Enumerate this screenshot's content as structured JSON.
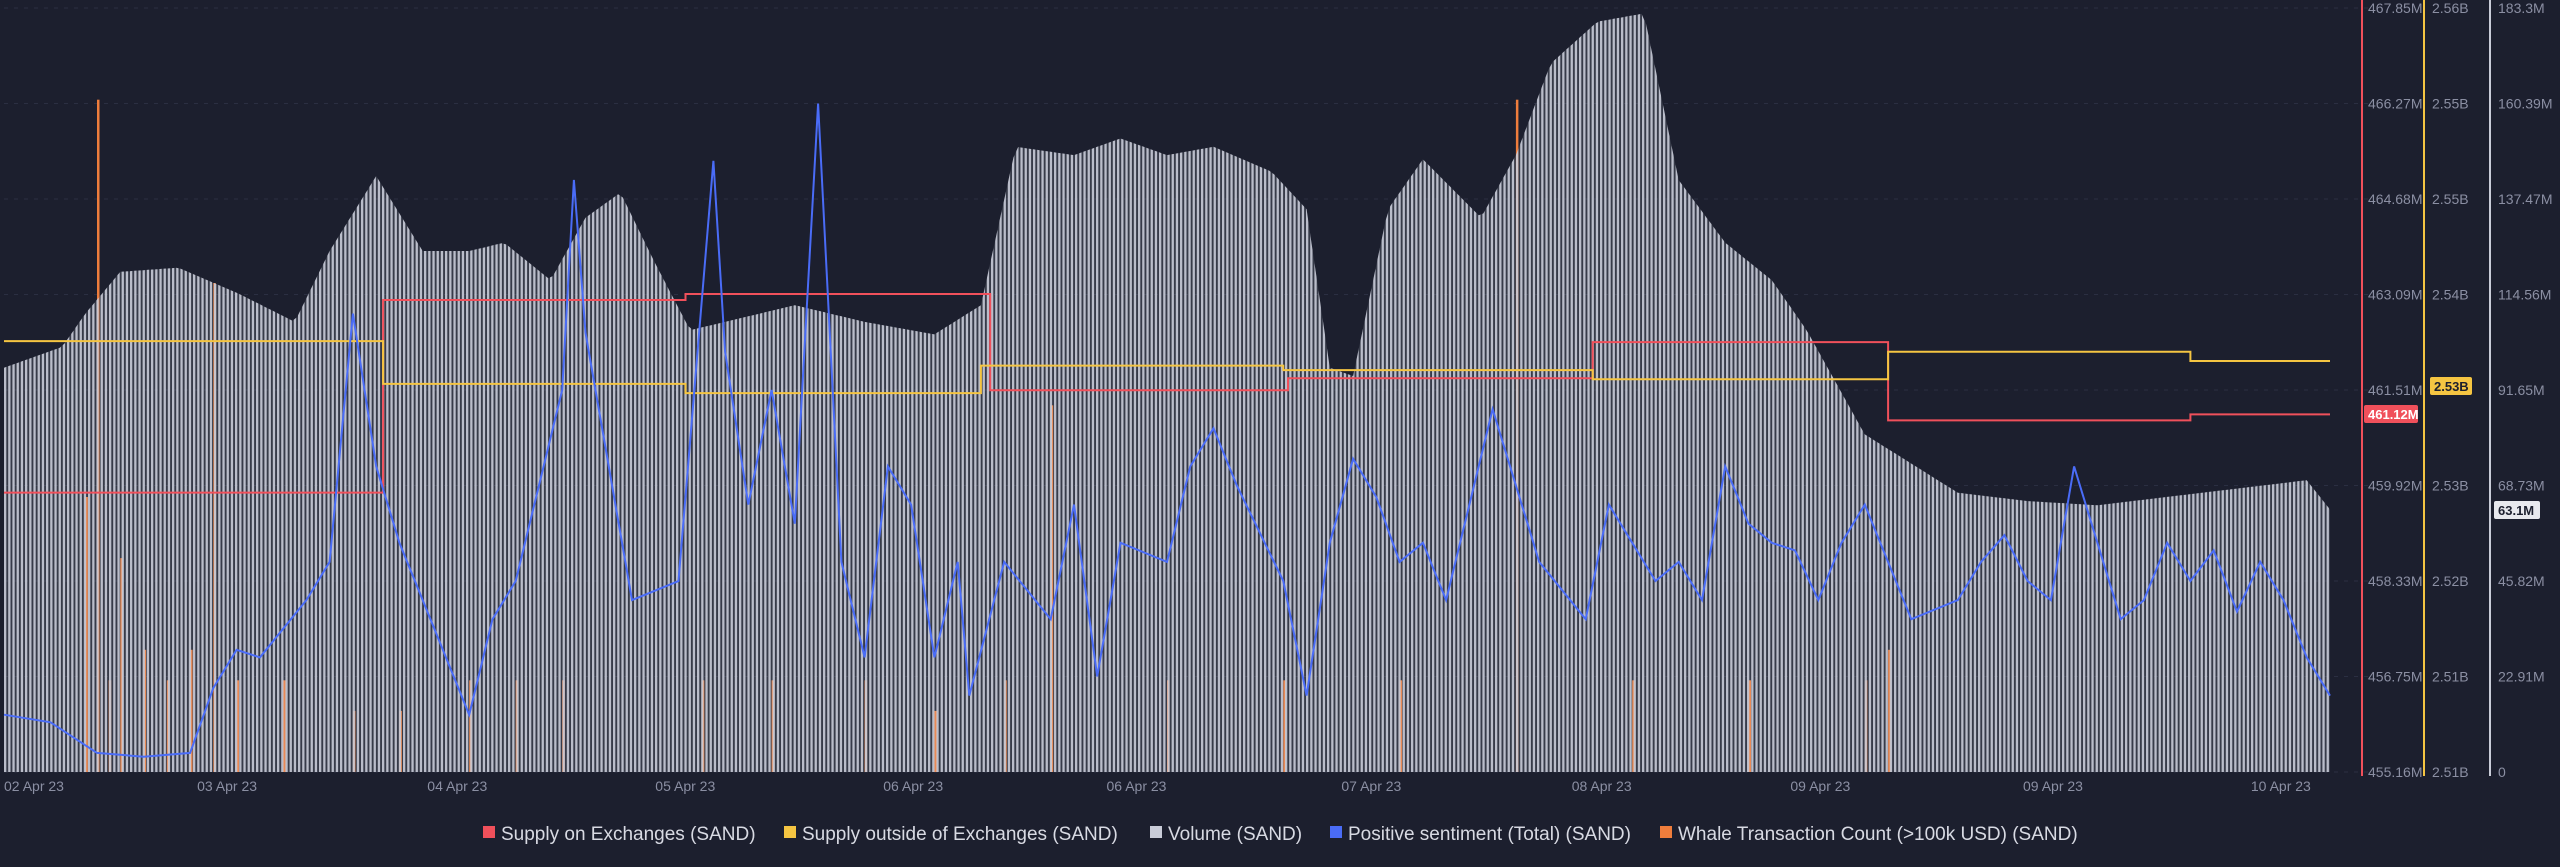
{
  "chart_data": {
    "type": "line",
    "title": "",
    "colors": {
      "background": "#1c1f2e",
      "grid": "#2b2f42",
      "axis_text": "#8b8fa3",
      "supply_on": "#f0505b",
      "supply_out": "#f5c542",
      "volume": "#c9ccd8",
      "sentiment": "#4a6cf7",
      "whale": "#ef7d3c"
    },
    "x_ticks": [
      "02 Apr 23",
      "03 Apr 23",
      "04 Apr 23",
      "05 Apr 23",
      "06 Apr 23",
      "06 Apr 23",
      "07 Apr 23",
      "08 Apr 23",
      "09 Apr 23",
      "09 Apr 23",
      "10 Apr 23"
    ],
    "axes": {
      "supply_on": {
        "ticks": [
          "467.85M",
          "466.27M",
          "464.68M",
          "463.09M",
          "461.51M",
          "459.92M",
          "458.33M",
          "456.75M",
          "455.16M"
        ],
        "range_m": [
          455.16,
          467.85
        ],
        "current_label": "461.12M"
      },
      "supply_out": {
        "ticks": [
          "2.56B",
          "2.55B",
          "2.55B",
          "2.54B",
          "2.53B",
          "2.53B",
          "2.52B",
          "2.51B",
          "2.51B"
        ],
        "range_b": [
          2.51,
          2.56
        ],
        "current_label": "2.53B"
      },
      "volume": {
        "ticks": [
          "183.3M",
          "160.39M",
          "137.47M",
          "114.56M",
          "91.65M",
          "68.73M",
          "45.82M",
          "22.91M",
          "0"
        ],
        "range_m": [
          0,
          183.3
        ],
        "current_label": "63.1M"
      }
    },
    "series": [
      {
        "name": "Supply on Exchanges (SAND)",
        "unit": "M SAND",
        "points": [
          [
            0,
            459.8
          ],
          [
            0.163,
            459.8
          ],
          [
            0.163,
            463.0
          ],
          [
            0.293,
            463.0
          ],
          [
            0.293,
            463.1
          ],
          [
            0.424,
            463.1
          ],
          [
            0.424,
            461.5
          ],
          [
            0.552,
            461.5
          ],
          [
            0.552,
            461.7
          ],
          [
            0.683,
            461.7
          ],
          [
            0.683,
            462.3
          ],
          [
            0.81,
            462.3
          ],
          [
            0.81,
            461.0
          ],
          [
            0.94,
            461.0
          ],
          [
            0.94,
            461.1
          ],
          [
            1.0,
            461.1
          ]
        ]
      },
      {
        "name": "Supply outside of Exchanges (SAND)",
        "unit": "B SAND",
        "points": [
          [
            0,
            2.5382
          ],
          [
            0.163,
            2.5382
          ],
          [
            0.163,
            2.5354
          ],
          [
            0.293,
            2.5354
          ],
          [
            0.293,
            2.5348
          ],
          [
            0.42,
            2.5348
          ],
          [
            0.42,
            2.5366
          ],
          [
            0.55,
            2.5366
          ],
          [
            0.55,
            2.5363
          ],
          [
            0.683,
            2.5363
          ],
          [
            0.683,
            2.5357
          ],
          [
            0.81,
            2.5357
          ],
          [
            0.81,
            2.5375
          ],
          [
            0.94,
            2.5375
          ],
          [
            0.94,
            2.5369
          ],
          [
            1.0,
            2.5369
          ]
        ]
      },
      {
        "name": "Volume (SAND)",
        "unit": "M SAND",
        "points": [
          [
            0,
            97
          ],
          [
            0.025,
            102
          ],
          [
            0.035,
            110
          ],
          [
            0.05,
            120
          ],
          [
            0.075,
            121
          ],
          [
            0.1,
            115
          ],
          [
            0.125,
            108
          ],
          [
            0.14,
            125
          ],
          [
            0.16,
            143
          ],
          [
            0.18,
            125
          ],
          [
            0.2,
            125
          ],
          [
            0.215,
            127
          ],
          [
            0.235,
            118
          ],
          [
            0.25,
            133
          ],
          [
            0.265,
            139
          ],
          [
            0.28,
            122
          ],
          [
            0.295,
            106
          ],
          [
            0.31,
            108
          ],
          [
            0.34,
            112
          ],
          [
            0.37,
            108
          ],
          [
            0.4,
            105
          ],
          [
            0.42,
            112
          ],
          [
            0.435,
            150
          ],
          [
            0.46,
            148
          ],
          [
            0.48,
            152
          ],
          [
            0.5,
            148
          ],
          [
            0.52,
            150
          ],
          [
            0.545,
            144
          ],
          [
            0.56,
            135
          ],
          [
            0.57,
            97
          ],
          [
            0.58,
            95
          ],
          [
            0.595,
            135
          ],
          [
            0.61,
            147
          ],
          [
            0.635,
            133
          ],
          [
            0.65,
            148
          ],
          [
            0.665,
            170
          ],
          [
            0.685,
            180
          ],
          [
            0.705,
            182
          ],
          [
            0.72,
            142
          ],
          [
            0.74,
            127
          ],
          [
            0.76,
            118
          ],
          [
            0.775,
            106
          ],
          [
            0.8,
            81
          ],
          [
            0.82,
            74
          ],
          [
            0.84,
            67
          ],
          [
            0.87,
            65
          ],
          [
            0.9,
            64
          ],
          [
            0.93,
            66
          ],
          [
            0.96,
            68
          ],
          [
            0.99,
            70
          ],
          [
            1.0,
            63
          ]
        ]
      },
      {
        "name": "Positive sentiment (Total)",
        "unit": "count",
        "points": [
          [
            0,
            15
          ],
          [
            0.02,
            13
          ],
          [
            0.04,
            5
          ],
          [
            0.06,
            4
          ],
          [
            0.08,
            5
          ],
          [
            0.09,
            22
          ],
          [
            0.1,
            32
          ],
          [
            0.11,
            30
          ],
          [
            0.13,
            45
          ],
          [
            0.14,
            55
          ],
          [
            0.15,
            120
          ],
          [
            0.16,
            80
          ],
          [
            0.17,
            60
          ],
          [
            0.18,
            45
          ],
          [
            0.2,
            15
          ],
          [
            0.21,
            40
          ],
          [
            0.22,
            50
          ],
          [
            0.24,
            100
          ],
          [
            0.245,
            155
          ],
          [
            0.25,
            115
          ],
          [
            0.27,
            45
          ],
          [
            0.29,
            50
          ],
          [
            0.305,
            160
          ],
          [
            0.31,
            110
          ],
          [
            0.32,
            70
          ],
          [
            0.33,
            100
          ],
          [
            0.34,
            65
          ],
          [
            0.35,
            175
          ],
          [
            0.36,
            55
          ],
          [
            0.37,
            30
          ],
          [
            0.38,
            80
          ],
          [
            0.39,
            70
          ],
          [
            0.4,
            30
          ],
          [
            0.41,
            55
          ],
          [
            0.415,
            20
          ],
          [
            0.43,
            55
          ],
          [
            0.45,
            40
          ],
          [
            0.46,
            70
          ],
          [
            0.47,
            25
          ],
          [
            0.48,
            60
          ],
          [
            0.5,
            55
          ],
          [
            0.51,
            80
          ],
          [
            0.52,
            90
          ],
          [
            0.53,
            75
          ],
          [
            0.55,
            50
          ],
          [
            0.56,
            20
          ],
          [
            0.57,
            60
          ],
          [
            0.58,
            82
          ],
          [
            0.59,
            72
          ],
          [
            0.6,
            55
          ],
          [
            0.61,
            60
          ],
          [
            0.62,
            45
          ],
          [
            0.63,
            70
          ],
          [
            0.64,
            95
          ],
          [
            0.66,
            55
          ],
          [
            0.68,
            40
          ],
          [
            0.69,
            70
          ],
          [
            0.7,
            60
          ],
          [
            0.71,
            50
          ],
          [
            0.72,
            55
          ],
          [
            0.73,
            45
          ],
          [
            0.74,
            80
          ],
          [
            0.75,
            65
          ],
          [
            0.76,
            60
          ],
          [
            0.77,
            58
          ],
          [
            0.78,
            45
          ],
          [
            0.79,
            60
          ],
          [
            0.8,
            70
          ],
          [
            0.82,
            40
          ],
          [
            0.84,
            45
          ],
          [
            0.85,
            55
          ],
          [
            0.86,
            62
          ],
          [
            0.87,
            50
          ],
          [
            0.88,
            45
          ],
          [
            0.89,
            80
          ],
          [
            0.9,
            60
          ],
          [
            0.91,
            40
          ],
          [
            0.92,
            45
          ],
          [
            0.93,
            60
          ],
          [
            0.94,
            50
          ],
          [
            0.95,
            58
          ],
          [
            0.96,
            42
          ],
          [
            0.97,
            55
          ],
          [
            0.98,
            45
          ],
          [
            0.99,
            30
          ],
          [
            1.0,
            20
          ]
        ]
      },
      {
        "name": "Whale Transaction Count (>100k USD) (SAND)",
        "unit": "count",
        "points": [
          [
            0.035,
            9
          ],
          [
            0.04,
            22
          ],
          [
            0.045,
            3
          ],
          [
            0.05,
            7
          ],
          [
            0.06,
            4
          ],
          [
            0.07,
            3
          ],
          [
            0.08,
            4
          ],
          [
            0.09,
            16
          ],
          [
            0.1,
            3
          ],
          [
            0.12,
            3
          ],
          [
            0.15,
            2
          ],
          [
            0.17,
            2
          ],
          [
            0.2,
            3
          ],
          [
            0.22,
            3
          ],
          [
            0.24,
            3
          ],
          [
            0.3,
            3
          ],
          [
            0.33,
            3
          ],
          [
            0.37,
            3
          ],
          [
            0.4,
            2
          ],
          [
            0.43,
            3
          ],
          [
            0.45,
            12
          ],
          [
            0.5,
            3
          ],
          [
            0.55,
            3
          ],
          [
            0.6,
            3
          ],
          [
            0.65,
            22
          ],
          [
            0.7,
            3
          ],
          [
            0.75,
            3
          ],
          [
            0.8,
            3
          ],
          [
            0.81,
            4
          ]
        ]
      }
    ],
    "legend_position": "bottom",
    "grid": true
  },
  "legend": [
    {
      "label": "Supply on Exchanges (SAND)",
      "color": "#f0505b"
    },
    {
      "label": "Supply outside of Exchanges (SAND)",
      "color": "#f5c542"
    },
    {
      "label": "Volume (SAND)",
      "color": "#c9ccd8"
    },
    {
      "label": "Positive sentiment (Total) (SAND)",
      "color": "#4a6cf7"
    },
    {
      "label": "Whale Transaction Count (>100k USD) (SAND)",
      "color": "#ef7d3c"
    }
  ]
}
